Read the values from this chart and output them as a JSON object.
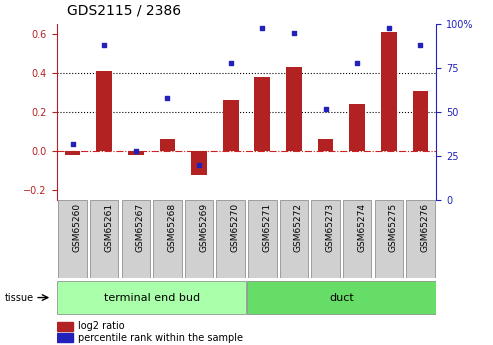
{
  "title": "GDS2115 / 2386",
  "categories": [
    "GSM65260",
    "GSM65261",
    "GSM65267",
    "GSM65268",
    "GSM65269",
    "GSM65270",
    "GSM65271",
    "GSM65272",
    "GSM65273",
    "GSM65274",
    "GSM65275",
    "GSM65276"
  ],
  "log2_ratio": [
    -0.02,
    0.41,
    -0.02,
    0.06,
    -0.12,
    0.26,
    0.38,
    0.43,
    0.06,
    0.24,
    0.61,
    0.31
  ],
  "percentile_rank": [
    32,
    88,
    28,
    58,
    20,
    78,
    98,
    95,
    52,
    78,
    98,
    88
  ],
  "bar_color": "#b22222",
  "dot_color": "#2222bb",
  "ylim_left": [
    -0.25,
    0.65
  ],
  "ylim_right": [
    0,
    100
  ],
  "yticks_left": [
    -0.2,
    0.0,
    0.2,
    0.4,
    0.6
  ],
  "yticks_right": [
    0,
    25,
    50,
    75,
    100
  ],
  "ytick_labels_right": [
    "0",
    "25",
    "50",
    "75",
    "100%"
  ],
  "hlines": [
    0.2,
    0.4
  ],
  "group1_label": "terminal end bud",
  "group2_label": "duct",
  "group1_count": 6,
  "group2_count": 6,
  "tissue_label": "tissue",
  "legend_bar_label": "log2 ratio",
  "legend_dot_label": "percentile rank within the sample",
  "group1_color": "#aaffaa",
  "group2_color": "#66dd66",
  "xlabel_bg_color": "#d0d0d0",
  "zero_line_color": "#cc2222",
  "bar_width": 0.5,
  "title_fontsize": 10,
  "tick_fontsize": 7,
  "label_fontsize": 6.5,
  "group_fontsize": 8,
  "legend_fontsize": 7,
  "tissue_fontsize": 7
}
